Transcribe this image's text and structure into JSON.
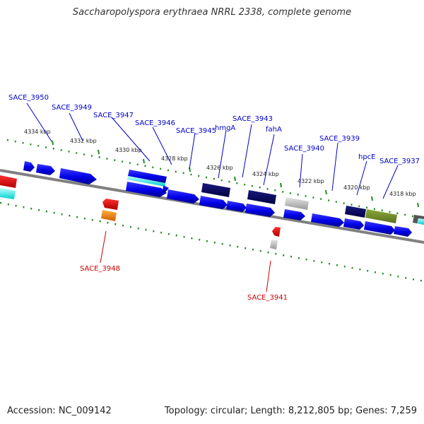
{
  "title": "Saccharopolyspora erythraea NRRL 2338, complete genome",
  "accession": "Accession: NC_009142",
  "summary": "Topology: circular; Length: 8,212,805 bp; Genes: 7,259",
  "ticks": [
    "4334 kbp",
    "4332 kbp",
    "4330 kbp",
    "4328 kbp",
    "4326 kbp",
    "4324 kbp",
    "4322 kbp",
    "4320 kbp",
    "4318 kbp"
  ],
  "genes_top": [
    "SACE_3950",
    "SACE_3949",
    "SACE_3947",
    "SACE_3946",
    "SACE_3945",
    "hmgA",
    "SACE_3943",
    "fahA",
    "SACE_3940",
    "SACE_3939",
    "hpcE",
    "SACE_3937"
  ],
  "genes_bottom": [
    "SACE_3948",
    "SACE_3941"
  ],
  "colors": {
    "label_top": "#0000cc",
    "label_bottom": "#cc0000",
    "tick_mark": "#228b22",
    "backbone": "#808080"
  }
}
